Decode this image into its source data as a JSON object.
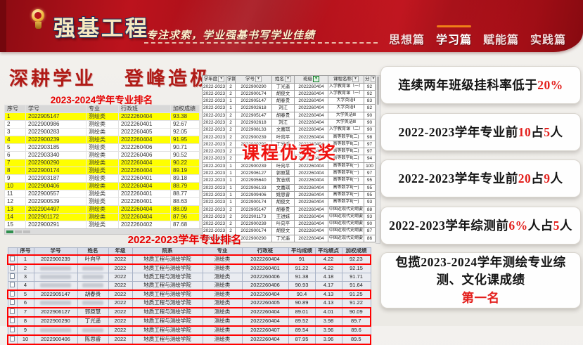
{
  "header": {
    "logo_title": "强基工程",
    "slogan": "专注求索，学业强基书写学业佳绩",
    "nav": [
      {
        "label": "思想篇",
        "active": false
      },
      {
        "label": "学习篇",
        "active": true
      },
      {
        "label": "赋能篇",
        "active": false
      },
      {
        "label": "实践篇",
        "active": false
      }
    ]
  },
  "main": {
    "title_left": "深耕学业",
    "title_right": "登峰造极",
    "ranking_label_2023_2024": "2023-2024学年专业排名",
    "course_award_overlay": "课程优秀奖",
    "ranking_label_2022_2023": "2022-2023学年专业排名"
  },
  "table1": {
    "columns": [
      "序号",
      "学号",
      "专业",
      "行政班",
      "加权成绩"
    ],
    "highlight_rows": [
      1,
      4,
      7,
      8,
      10,
      13,
      14
    ],
    "rows": [
      [
        "1",
        "2022905147",
        "测绘类",
        "2022260404",
        "93.38"
      ],
      [
        "2",
        "2022900986",
        "测绘类",
        "2022260401",
        "92.67"
      ],
      [
        "3",
        "2022900283",
        "测绘类",
        "2022260405",
        "92.05"
      ],
      [
        "4",
        "2022900239",
        "测绘类",
        "2022260404",
        "91.95"
      ],
      [
        "5",
        "2022903185",
        "测绘类",
        "2022260406",
        "90.71"
      ],
      [
        "6",
        "2022903340",
        "测绘类",
        "2022260406",
        "90.52"
      ],
      [
        "7",
        "2022900290",
        "测绘类",
        "2022260404",
        "90.22"
      ],
      [
        "8",
        "2022900174",
        "测绘类",
        "2022260404",
        "89.19"
      ],
      [
        "9",
        "2022903187",
        "测绘类",
        "2022260401",
        "89.18"
      ],
      [
        "10",
        "2022900406",
        "测绘类",
        "2022260404",
        "88.79"
      ],
      [
        "11",
        "2022900557",
        "测绘类",
        "2022260401",
        "88.77"
      ],
      [
        "12",
        "2022900539",
        "测绘类",
        "2022260401",
        "88.63"
      ],
      [
        "13",
        "2022904497",
        "测绘类",
        "2022260404",
        "88.09"
      ],
      [
        "14",
        "2022901172",
        "测绘类",
        "2022260404",
        "87.96"
      ],
      [
        "15",
        "2022900291",
        "测绘类",
        "2022260402",
        "87.68"
      ]
    ]
  },
  "table2": {
    "columns": [
      "学年度",
      "学期",
      "学号",
      "姓名",
      "班级",
      "课程名称",
      "分"
    ],
    "filter_column": "班级",
    "rows": [
      [
        "2022-2023",
        "2",
        "2022900290",
        "丁光遥",
        "2022260404",
        "入学教育课（一）",
        "92"
      ],
      [
        "2022-2023",
        "2",
        "2022900174",
        "胡俊文",
        "2022260404",
        "入学教育课（一）",
        "92"
      ],
      [
        "2022-2023",
        "1",
        "2022905147",
        "胡春贵",
        "2022260404",
        "大学英语Ⅱ",
        "83"
      ],
      [
        "2022-2023",
        "1",
        "2022902618",
        "刘江",
        "2022260404",
        "大学英语Ⅱ",
        "82"
      ],
      [
        "2022-2023",
        "2",
        "2022905147",
        "胡春贵",
        "2022260404",
        "大学英语Ⅲ",
        "90"
      ],
      [
        "2022-2023",
        "2",
        "2022902618",
        "刘江",
        "2022260404",
        "大学英语Ⅲ",
        "90"
      ],
      [
        "2022-2023",
        "2",
        "2022908133",
        "文嘉琪",
        "2022260404",
        "入学教育课（二）",
        "90"
      ],
      [
        "2022-2023",
        "2",
        "2022900239",
        "叶向平",
        "2022260404",
        "高等数学Ⅱ(二)",
        "98"
      ],
      [
        "2022-2023",
        "2",
        "2022900290",
        "丁光遥",
        "2022260404",
        "高等数学Ⅱ(二)",
        "97"
      ],
      [
        "2022-2023",
        "2",
        "20…",
        "",
        "2022260404",
        "高等数学Ⅱ(二)",
        "97"
      ],
      [
        "2022-2023",
        "2",
        "20…",
        "",
        "2022260404",
        "高等数学Ⅱ(二)",
        "94"
      ],
      [
        "2022-2023",
        "1",
        "2022900239",
        "叶向平",
        "2022260404",
        "高等数学Ⅱ(一)",
        "100"
      ],
      [
        "2022-2023",
        "1",
        "2022906127",
        "郭原慧",
        "2022260404",
        "高等数学Ⅱ(一)",
        "97"
      ],
      [
        "2022-2023",
        "1",
        "2022905640",
        "贺志琪",
        "2022260404",
        "高等数学Ⅱ(一)",
        "95"
      ],
      [
        "2022-2023",
        "1",
        "2022906133",
        "文嘉琪",
        "2022260404",
        "高等数学Ⅱ(一)",
        "95"
      ],
      [
        "2022-2023",
        "1",
        "2022909406",
        "姚思睿",
        "2022260404",
        "高等数学Ⅱ(一)",
        "95"
      ],
      [
        "2022-2023",
        "1",
        "2022900174",
        "胡俊文",
        "2022260404",
        "高等数学Ⅱ(一)",
        "93"
      ],
      [
        "2022-2023",
        "2",
        "2022905147",
        "胡春贵",
        "2022260404",
        "中国近现代史纲要",
        "88"
      ],
      [
        "2022-2023",
        "2",
        "2022901173",
        "王进妹",
        "2022260404",
        "中国近现代史纲要",
        "93"
      ],
      [
        "2022-2023",
        "2",
        "2022900239",
        "叶向平",
        "2022260404",
        "中国近现代史纲要",
        "90"
      ],
      [
        "2022-2023",
        "2",
        "2022900174",
        "胡俊文",
        "2022260404",
        "中国近现代史纲要",
        "87"
      ],
      [
        "2022-2023",
        "2",
        "2022900290",
        "丁光遥",
        "2022260404",
        "中国近现代史纲要",
        "86"
      ]
    ]
  },
  "table3": {
    "columns": [
      "序号",
      "学号",
      "姓名",
      "年级",
      "院系",
      "专业",
      "行政班",
      "平均成绩",
      "平均绩点",
      "加权成绩"
    ],
    "boxed_rows": [
      1,
      5,
      7,
      8,
      10
    ],
    "masked_rows": [
      2,
      3,
      4,
      6,
      9
    ],
    "rows": [
      [
        "1",
        "2022900239",
        "叶向平",
        "2022",
        "地质工程与测绘学院",
        "测绘类",
        "2022260404",
        "91",
        "4.22",
        "92.23"
      ],
      [
        "2",
        "",
        "",
        "2022",
        "地质工程与测绘学院",
        "测绘类",
        "2022260401",
        "91.22",
        "4.22",
        "92.15"
      ],
      [
        "3",
        "",
        "",
        "2022",
        "地质工程与测绘学院",
        "测绘类",
        "2022260406",
        "91.38",
        "4.18",
        "91.71"
      ],
      [
        "4",
        "",
        "",
        "2022",
        "地质工程与测绘学院",
        "测绘类",
        "2022260406",
        "90.93",
        "4.17",
        "91.64"
      ],
      [
        "5",
        "2022905147",
        "胡春贵",
        "2022",
        "地质工程与测绘学院",
        "测绘类",
        "2022260404",
        "90.4",
        "4.13",
        "91.25"
      ],
      [
        "6",
        "",
        "",
        "2022",
        "地质工程与测绘学院",
        "测绘类",
        "2022260405",
        "90.89",
        "4.13",
        "91.22"
      ],
      [
        "7",
        "2022906127",
        "郭原慧",
        "2022",
        "地质工程与测绘学院",
        "测绘类",
        "2022260404",
        "89.01",
        "4.01",
        "90.09"
      ],
      [
        "8",
        "2022900290",
        "丁光遥",
        "2022",
        "地质工程与测绘学院",
        "测绘类",
        "2022260404",
        "89.52",
        "3.98",
        "89.7"
      ],
      [
        "9",
        "",
        "",
        "2022",
        "地质工程与测绘学院",
        "测绘类",
        "2022260407",
        "89.54",
        "3.96",
        "89.6"
      ],
      [
        "10",
        "2022900406",
        "陈思睿",
        "2022",
        "地质工程与测绘学院",
        "测绘类",
        "2022260404",
        "87.95",
        "3.96",
        "89.5"
      ]
    ]
  },
  "cards": [
    {
      "segments": [
        {
          "text": "连续两年班级挂科率低于"
        },
        {
          "text": "20%",
          "red": true
        }
      ]
    },
    {
      "segments": [
        {
          "text": "2022-2023学年专业前"
        },
        {
          "text": "10",
          "red": true
        },
        {
          "text": "占"
        },
        {
          "text": "5",
          "red": true
        },
        {
          "text": "人"
        }
      ]
    },
    {
      "segments": [
        {
          "text": "2022-2023学年专业前"
        },
        {
          "text": "20",
          "red": true
        },
        {
          "text": "占"
        },
        {
          "text": "9",
          "red": true
        },
        {
          "text": "人"
        }
      ]
    },
    {
      "segments": [
        {
          "text": "2022-2023学年综测前"
        },
        {
          "text": "6%",
          "red": true
        },
        {
          "text": "人占"
        },
        {
          "text": "5",
          "red": true
        },
        {
          "text": "人"
        }
      ]
    },
    {
      "segments": [
        {
          "text": "包揽2023-2024学年测绘专业综测、文化课成绩"
        },
        {
          "text": "第一名",
          "red": true
        }
      ]
    }
  ],
  "colors": {
    "header_red": "#b5121b",
    "highlight_yellow": "#ffff00",
    "annotation_red": "#ff0000",
    "card_accent_red": "#e3201d",
    "nav_active_underline": "#f08018"
  }
}
